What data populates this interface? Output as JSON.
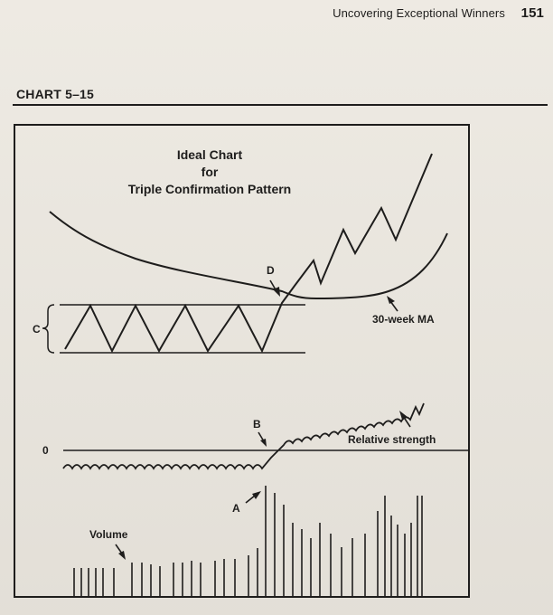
{
  "page_header": {
    "running_title": "Uncovering Exceptional Winners",
    "page_number": "151"
  },
  "chart_label": "CHART 5–15",
  "figure": {
    "title_lines": [
      "Ideal Chart",
      "for",
      "Triple Confirmation Pattern"
    ],
    "annotations": {
      "c": "C",
      "d": "D",
      "b": "B",
      "a": "A",
      "ma": "30-week MA",
      "relative_strength": "Relative strength",
      "zero": "0",
      "volume": "Volume"
    }
  },
  "colors": {
    "paper": "#ece8e0",
    "ink": "#1e1d1c"
  }
}
